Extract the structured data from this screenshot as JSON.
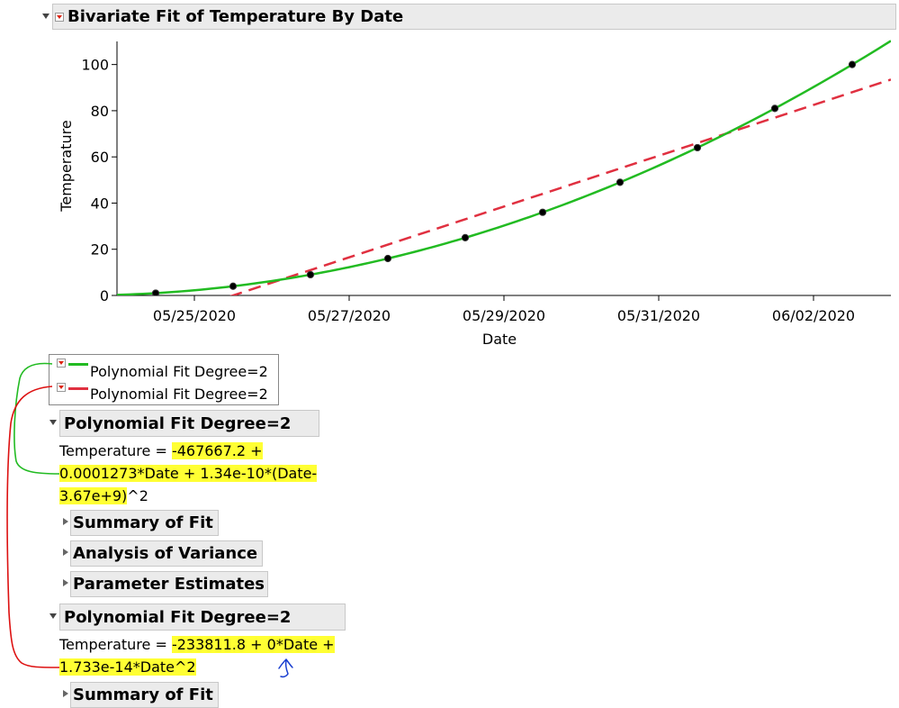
{
  "report": {
    "title": "Bivariate Fit of Temperature By Date"
  },
  "chart_data": {
    "type": "scatter",
    "xlabel": "Date",
    "ylabel": "Temperature",
    "x_ticks": [
      "05/25/2020",
      "05/27/2020",
      "05/29/2020",
      "05/31/2020",
      "06/02/2020"
    ],
    "y_ticks": [
      "0",
      "20",
      "40",
      "60",
      "80",
      "100"
    ],
    "ylim": [
      0,
      110
    ],
    "xlim": [
      "05/24/2020",
      "06/03/2020"
    ],
    "grid": false,
    "points": [
      {
        "x": "05/24/2020 12:00",
        "y": 1
      },
      {
        "x": "05/25/2020 12:00",
        "y": 4
      },
      {
        "x": "05/26/2020 12:00",
        "y": 9
      },
      {
        "x": "05/27/2020 12:00",
        "y": 16
      },
      {
        "x": "05/28/2020 12:00",
        "y": 25
      },
      {
        "x": "05/29/2020 12:00",
        "y": 36
      },
      {
        "x": "05/30/2020 12:00",
        "y": 49
      },
      {
        "x": "05/31/2020 12:00",
        "y": 64
      },
      {
        "x": "06/01/2020 12:00",
        "y": 81
      },
      {
        "x": "06/02/2020 12:00",
        "y": 100
      }
    ],
    "series": [
      {
        "fit": "quadratic",
        "color": "#22bb22",
        "dash": false
      },
      {
        "fit": "linear",
        "color": "#e03040",
        "dash": true
      }
    ]
  },
  "legend": {
    "items": [
      {
        "label": "Polynomial Fit Degree=2",
        "color": "#22bb22"
      },
      {
        "label": "Polynomial Fit Degree=2",
        "color": "#e03040"
      }
    ]
  },
  "fit1": {
    "title": "Polynomial Fit Degree=2",
    "eq_prefix": "Temperature = ",
    "eq_line1_hl": "-467667.2 +",
    "eq_line2_hl": "0.0001273*Date + 1.34e-10*(Date-",
    "eq_line3_hl": "3.67e+9)",
    "eq_line3_rest": "^2",
    "sections": [
      "Summary of Fit",
      "Analysis of Variance",
      "Parameter Estimates"
    ]
  },
  "fit2": {
    "title": "Polynomial Fit Degree=2",
    "eq_prefix": "Temperature = ",
    "eq_line1_hl": "-233811.8 + 0*Date +",
    "eq_line2_hl": "1.733e-14*Date^2",
    "sections": [
      "Summary of Fit"
    ]
  },
  "colors": {
    "green_fit": "#22bb22",
    "red_fit": "#e03040",
    "highlight": "#ffff33",
    "annotation_blue": "#1a3fd0"
  }
}
